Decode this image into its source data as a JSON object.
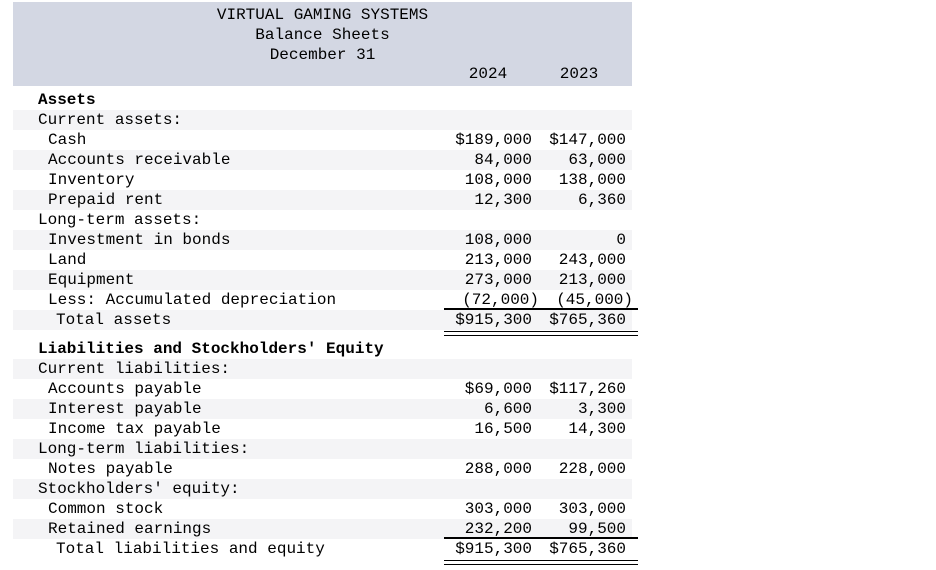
{
  "report": {
    "company": "VIRTUAL GAMING SYSTEMS",
    "statement": "Balance Sheets",
    "date_line": "December 31",
    "columns": [
      "2024",
      "2023"
    ]
  },
  "colors": {
    "header_band": "#d3d7e3",
    "row_stripe": "#f4f4f6",
    "text": "#000000"
  },
  "rows": [
    {
      "label": "Assets",
      "indent": 0,
      "bold": true,
      "stripe": false,
      "v1": "",
      "v2": ""
    },
    {
      "label": "Current assets:",
      "indent": 0,
      "stripe": true,
      "v1": "",
      "v2": ""
    },
    {
      "label": "Cash",
      "indent": 1,
      "v1": "$189,000",
      "v2": "$147,000"
    },
    {
      "label": "Accounts receivable",
      "indent": 1,
      "stripe": true,
      "v1": "84,000",
      "v2": "63,000"
    },
    {
      "label": "Inventory",
      "indent": 1,
      "v1": "108,000",
      "v2": "138,000"
    },
    {
      "label": "Prepaid rent",
      "indent": 1,
      "stripe": true,
      "v1": "12,300",
      "v2": "6,360"
    },
    {
      "label": "Long-term assets:",
      "indent": 0,
      "v1": "",
      "v2": ""
    },
    {
      "label": "Investment in bonds",
      "indent": 1,
      "stripe": true,
      "v1": "108,000",
      "v2": "0"
    },
    {
      "label": "Land",
      "indent": 1,
      "v1": "213,000",
      "v2": "243,000"
    },
    {
      "label": "Equipment",
      "indent": 1,
      "stripe": true,
      "v1": "273,000",
      "v2": "213,000"
    },
    {
      "label": "Less: Accumulated depreciation",
      "indent": 1,
      "v1": "(72,000)",
      "v2": "(45,000)",
      "rule": "single",
      "paren": true
    },
    {
      "label": "Total assets",
      "indent": 2,
      "stripe": true,
      "v1": "$915,300",
      "v2": "$765,360",
      "rule": "double",
      "gap_after": true
    },
    {
      "label": "Liabilities and Stockholders' Equity",
      "indent": 0,
      "bold": true,
      "v1": "",
      "v2": ""
    },
    {
      "label": "Current liabilities:",
      "indent": 0,
      "stripe": true,
      "v1": "",
      "v2": ""
    },
    {
      "label": "Accounts payable",
      "indent": 1,
      "v1": "$69,000",
      "v2": "$117,260"
    },
    {
      "label": "Interest payable",
      "indent": 1,
      "stripe": true,
      "v1": "6,600",
      "v2": "3,300"
    },
    {
      "label": "Income tax payable",
      "indent": 1,
      "v1": "16,500",
      "v2": "14,300"
    },
    {
      "label": "Long-term liabilities:",
      "indent": 0,
      "stripe": true,
      "v1": "",
      "v2": ""
    },
    {
      "label": "Notes payable",
      "indent": 1,
      "v1": "288,000",
      "v2": "228,000"
    },
    {
      "label": "Stockholders' equity:",
      "indent": 0,
      "stripe": true,
      "v1": "",
      "v2": ""
    },
    {
      "label": "Common stock",
      "indent": 1,
      "v1": "303,000",
      "v2": "303,000"
    },
    {
      "label": "Retained earnings",
      "indent": 1,
      "stripe": true,
      "v1": "232,200",
      "v2": "99,500",
      "rule": "single"
    },
    {
      "label": "Total liabilities and equity",
      "indent": 2,
      "v1": "$915,300",
      "v2": "$765,360",
      "rule": "double"
    }
  ]
}
